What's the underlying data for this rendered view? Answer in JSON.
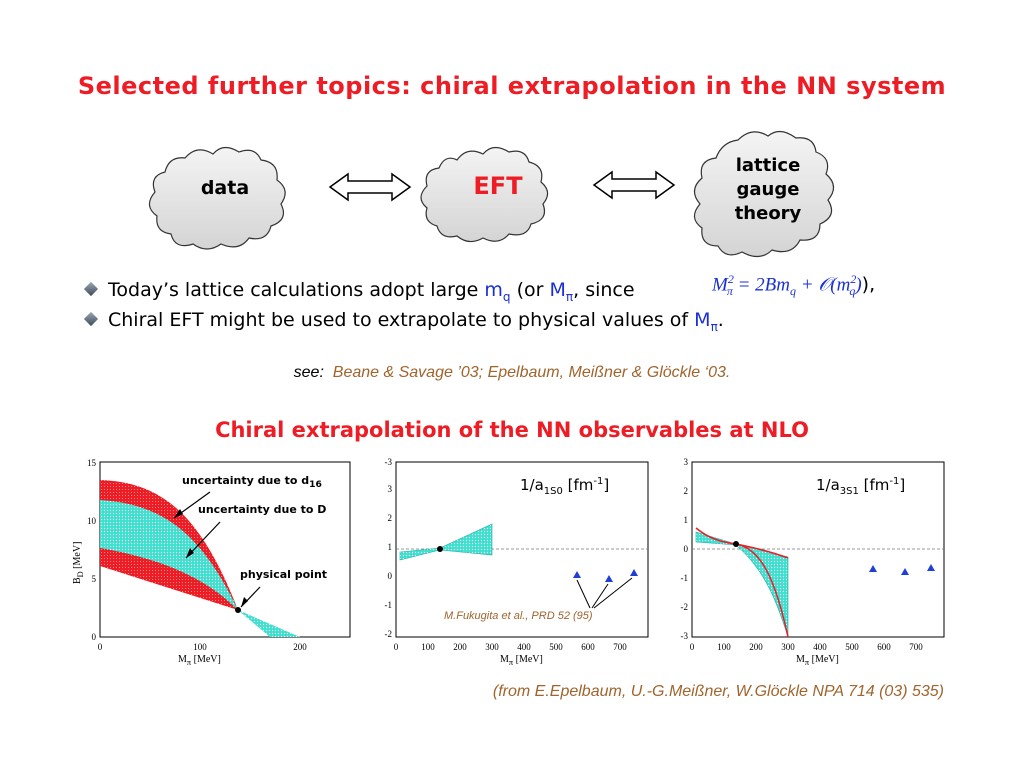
{
  "title": "Selected further topics: chiral extrapolation in the NN system",
  "clouds": {
    "data": "data",
    "eft": "EFT",
    "lattice": [
      "lattice",
      "gauge",
      "theory"
    ]
  },
  "bullets": {
    "b1_pre": "Today’s lattice calculations adopt large ",
    "b1_mq": "m",
    "b1_mq_sub": "q",
    "b1_mid": " (or ",
    "b1_mpi": "M",
    "b1_mpi_sub": "π",
    "b1_post": ", since",
    "b1_formula": "M²π = 2Bmq + O(m²q)",
    "b1_end": "),",
    "b2_pre": "Chiral EFT might be used to extrapolate to physical values of ",
    "b2_mpi": "M",
    "b2_mpi_sub": "π",
    "b2_end": "."
  },
  "see": {
    "label": "see:",
    "refs": "Beane & Savage ’03;  Epelbaum, Meißner & Glöckle ‘03."
  },
  "subtitle": "Chiral extrapolation of the NN observables at NLO",
  "citation": "(from E.Epelbaum, U.-G.Meißner, W.Glöckle NPA 714 (03) 535)",
  "colors": {
    "title_red": "#ee1c24",
    "blue": "#1a2fd6",
    "brown": "#a0642c",
    "band_red": "#ee1c24",
    "band_cyan": "#40e0d0",
    "marker_blue": "#1f3fd6"
  },
  "plots": {
    "p1": {
      "ylabel": "B",
      "ylabel_sub": "D",
      "ylabel_unit": "[MeV]",
      "xlabel": "M",
      "xlabel_sub": "π",
      "xlabel_unit": "[MeV]",
      "xticks": [
        "0",
        "100",
        "200"
      ],
      "yticks": [
        "0",
        "5",
        "10",
        "15"
      ],
      "ann1": "uncertainty due to d",
      "ann1_sub": "16",
      "ann2": "uncertainty due to D",
      "ann3": "physical point"
    },
    "p2": {
      "label": "1/a",
      "label_sub": "1S0",
      "label_unit": "[fm",
      "label_sup": "-1",
      "label_close": "]",
      "xticks": [
        "0",
        "100",
        "200",
        "300",
        "400",
        "500",
        "600",
        "700"
      ],
      "yticks": [
        "3",
        "2",
        "1",
        "0",
        "-1",
        "-2",
        "-3"
      ],
      "xlabel": "M",
      "xlabel_sub": "π",
      "xlabel_unit": "[MeV]",
      "ref": "M.Fukugita et al., PRD 52 (95)"
    },
    "p3": {
      "label": "1/a",
      "label_sub": "3S1",
      "label_unit": "[fm",
      "label_sup": "-1",
      "label_close": "]",
      "xticks": [
        "0",
        "100",
        "200",
        "300",
        "400",
        "500",
        "600",
        "700"
      ],
      "yticks": [
        "3",
        "2",
        "1",
        "0",
        "-1",
        "-2",
        "-3"
      ],
      "xlabel": "M",
      "xlabel_sub": "π",
      "xlabel_unit": "[MeV]"
    }
  }
}
